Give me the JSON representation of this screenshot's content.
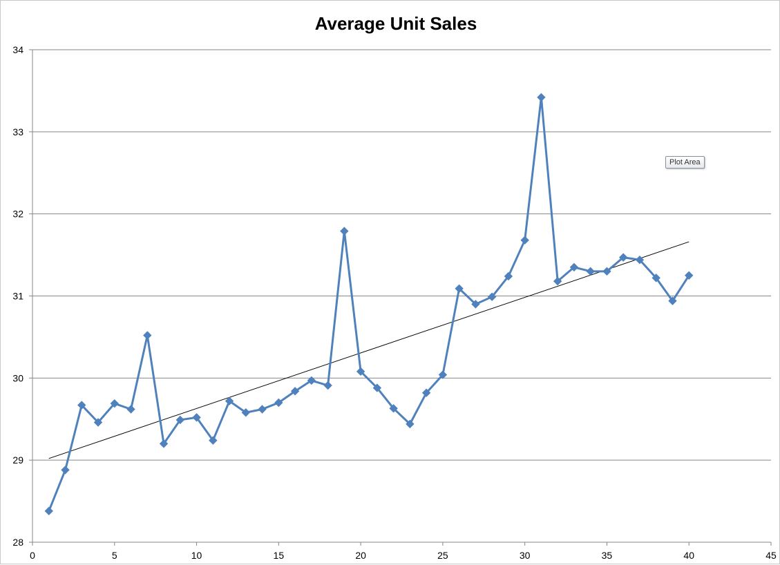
{
  "chart_data": {
    "type": "line",
    "title": "Average Unit Sales",
    "xlabel": "",
    "ylabel": "",
    "xlim": [
      0,
      45
    ],
    "ylim": [
      28,
      34
    ],
    "x_ticks": [
      0,
      5,
      10,
      15,
      20,
      25,
      30,
      35,
      40,
      45
    ],
    "y_ticks": [
      28,
      29,
      30,
      31,
      32,
      33,
      34
    ],
    "grid": {
      "horizontal": true,
      "vertical": false
    },
    "legend": "none",
    "series": [
      {
        "color": "#4f81bd",
        "marker": "diamond",
        "x": [
          1,
          2,
          3,
          4,
          5,
          6,
          7,
          8,
          9,
          10,
          11,
          12,
          13,
          14,
          15,
          16,
          17,
          18,
          19,
          20,
          21,
          22,
          23,
          24,
          25,
          26,
          27,
          28,
          29,
          30,
          31,
          32,
          33,
          34,
          35,
          36,
          37,
          38,
          39,
          40
        ],
        "values": [
          28.38,
          28.88,
          29.67,
          29.46,
          29.69,
          29.62,
          30.52,
          29.2,
          29.49,
          29.52,
          29.24,
          29.72,
          29.58,
          29.62,
          29.7,
          29.84,
          29.97,
          29.91,
          31.79,
          30.08,
          29.88,
          29.63,
          29.44,
          29.82,
          30.04,
          31.09,
          30.9,
          30.99,
          31.24,
          31.68,
          33.42,
          31.18,
          31.35,
          31.3,
          31.3,
          31.47,
          31.44,
          31.22,
          30.94,
          31.25
        ]
      }
    ],
    "trendline": {
      "color": "#000000",
      "x": [
        1,
        40
      ],
      "values": [
        29.02,
        31.66
      ]
    }
  },
  "tooltip": {
    "label": "Plot Area"
  }
}
